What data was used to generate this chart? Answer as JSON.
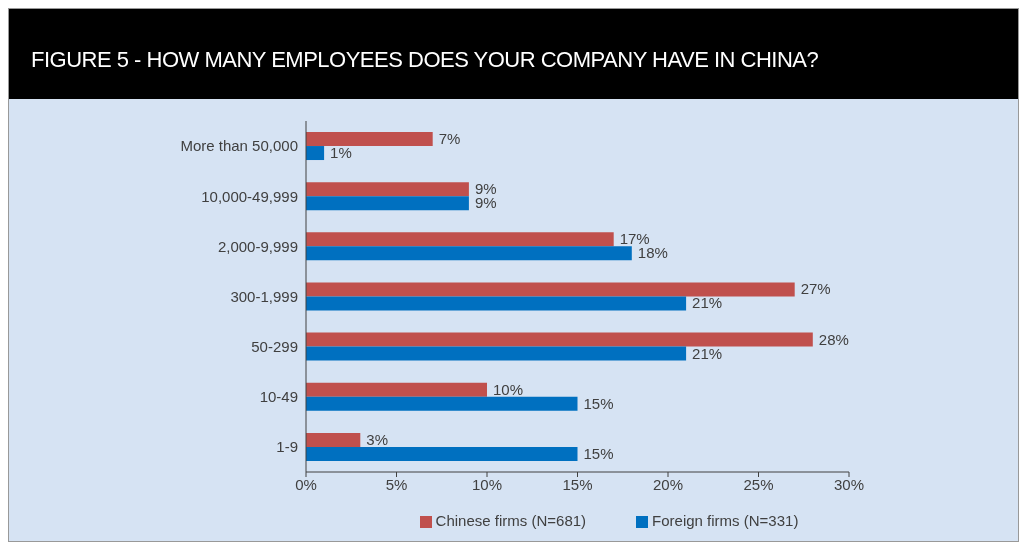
{
  "chart_data": {
    "type": "bar",
    "orientation": "horizontal",
    "title": "FIGURE 5 - HOW MANY EMPLOYEES DOES YOUR COMPANY HAVE IN CHINA?",
    "categories": [
      "More than 50,000",
      "10,000-49,999",
      "2,000-9,999",
      "300-1,999",
      "50-299",
      "10-49",
      "1-9"
    ],
    "series": [
      {
        "name": "Chinese firms (N=681)",
        "color": "#c0504d",
        "values": [
          7,
          9,
          17,
          27,
          28,
          10,
          3
        ],
        "value_labels": [
          "7%",
          "9%",
          "17%",
          "27%",
          "28%",
          "10%",
          "3%"
        ]
      },
      {
        "name": "Foreign firms (N=331)",
        "color": "#0070c0",
        "values": [
          1,
          9,
          18,
          21,
          21,
          15,
          15
        ],
        "value_labels": [
          "1%",
          "9%",
          "18%",
          "21%",
          "21%",
          "15%",
          "15%"
        ]
      }
    ],
    "xlim": [
      0,
      30
    ],
    "xticks": [
      {
        "value": 0,
        "label": "0%"
      },
      {
        "value": 5,
        "label": "5%"
      },
      {
        "value": 10,
        "label": "10%"
      },
      {
        "value": 15,
        "label": "15%"
      },
      {
        "value": 20,
        "label": "20%"
      },
      {
        "value": 25,
        "label": "25%"
      },
      {
        "value": 30,
        "label": "30%"
      }
    ],
    "grid": false,
    "legend": "bottom"
  }
}
